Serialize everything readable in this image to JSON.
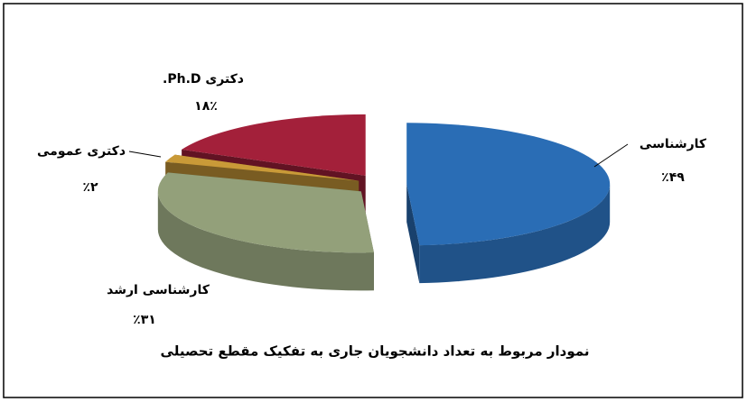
{
  "chart_data": {
    "type": "pie3d",
    "title": "نمودار مربوط به تعداد دانشجویان جاری به تفکیک مقطع تحصیلی",
    "categories": [
      "کارشناسی",
      "کارشناسی ارشد",
      "دکتری عمومی",
      "دکتری Ph.D."
    ],
    "values": [
      49,
      31,
      2,
      18
    ],
    "value_labels": [
      "٪۴۹",
      "٪۳۱",
      "٪۲",
      "۱۸٪"
    ],
    "colors": [
      "#2a6db5",
      "#93a07a",
      "#c99a38",
      "#a3203a"
    ]
  }
}
